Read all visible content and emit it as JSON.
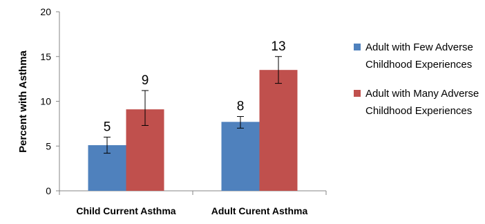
{
  "chart_data": {
    "type": "bar",
    "categories": [
      "Child Current Asthma",
      "Adult Curent Asthma"
    ],
    "series": [
      {
        "name": "Adult with Few Adverse Childhood Experiences",
        "color": "#4f81bd",
        "values": [
          5.1,
          7.7
        ],
        "err_low": [
          4.2,
          7.0
        ],
        "err_high": [
          6.0,
          8.3
        ],
        "labels": [
          "5",
          "8"
        ]
      },
      {
        "name": "Adult with Many Adverse Childhood Experiences",
        "color": "#c0504d",
        "values": [
          9.1,
          13.5
        ],
        "err_low": [
          7.3,
          12.0
        ],
        "err_high": [
          11.2,
          15.0
        ],
        "labels": [
          "9",
          "13"
        ]
      }
    ],
    "ylabel": "Percent with Asthma",
    "xlabel": "",
    "ylim": [
      0,
      20
    ],
    "yticks": [
      0,
      5,
      10,
      15,
      20
    ],
    "grid": false,
    "legend_position": "right"
  }
}
